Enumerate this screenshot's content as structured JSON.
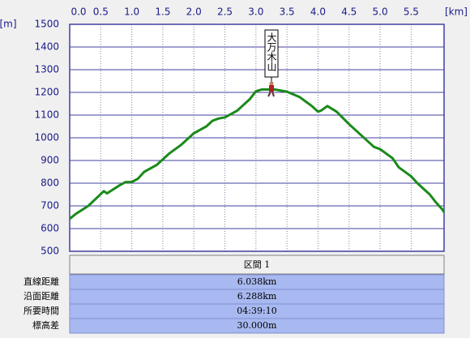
{
  "chart_data": {
    "type": "line",
    "x_unit": "[km]",
    "y_unit": "[m]",
    "annotation": "大万木山",
    "annotation_x": 3.25,
    "x": [
      0,
      0.1,
      0.3,
      0.55,
      0.6,
      0.8,
      0.9,
      1.0,
      1.1,
      1.2,
      1.4,
      1.6,
      1.8,
      2.0,
      2.2,
      2.3,
      2.4,
      2.5,
      2.7,
      2.9,
      3.0,
      3.1,
      3.3,
      3.5,
      3.7,
      3.9,
      4.0,
      4.05,
      4.15,
      4.3,
      4.5,
      4.7,
      4.9,
      5.0,
      5.2,
      5.3,
      5.5,
      5.6,
      5.8,
      5.9,
      6.0,
      6.03
    ],
    "series": [
      {
        "color": "#1a8a1a",
        "values": [
          643,
          665,
          700,
          765,
          755,
          790,
          805,
          805,
          820,
          850,
          880,
          930,
          970,
          1020,
          1050,
          1075,
          1085,
          1090,
          1120,
          1170,
          1205,
          1213,
          1213,
          1203,
          1180,
          1140,
          1115,
          1120,
          1140,
          1115,
          1060,
          1010,
          960,
          950,
          910,
          870,
          830,
          800,
          750,
          715,
          685,
          672
        ]
      }
    ],
    "xlim": [
      0,
      6.03
    ],
    "ylim": [
      500,
      1500
    ],
    "xticks": [
      {
        "value": 0,
        "label": "0.0"
      },
      0.5,
      {
        "value": 1,
        "label": "1.0"
      },
      1.5,
      {
        "value": 2,
        "label": "2.0"
      },
      2.5,
      {
        "value": 3,
        "label": "3.0"
      },
      3.5,
      {
        "value": 4,
        "label": "4.0"
      },
      4.5,
      {
        "value": 5,
        "label": "5.0"
      },
      5.5
    ],
    "yticks": [
      500,
      600,
      700,
      800,
      900,
      1000,
      1100,
      1200,
      1300,
      1400,
      1500
    ],
    "grid": true
  },
  "table": {
    "header": "区間 1",
    "rows": [
      [
        "直線距離",
        "6.038km"
      ],
      [
        "沿面距離",
        "6.288km"
      ],
      [
        "所要時間",
        "04:39:10"
      ],
      [
        "標高差",
        "30.000m"
      ]
    ]
  }
}
